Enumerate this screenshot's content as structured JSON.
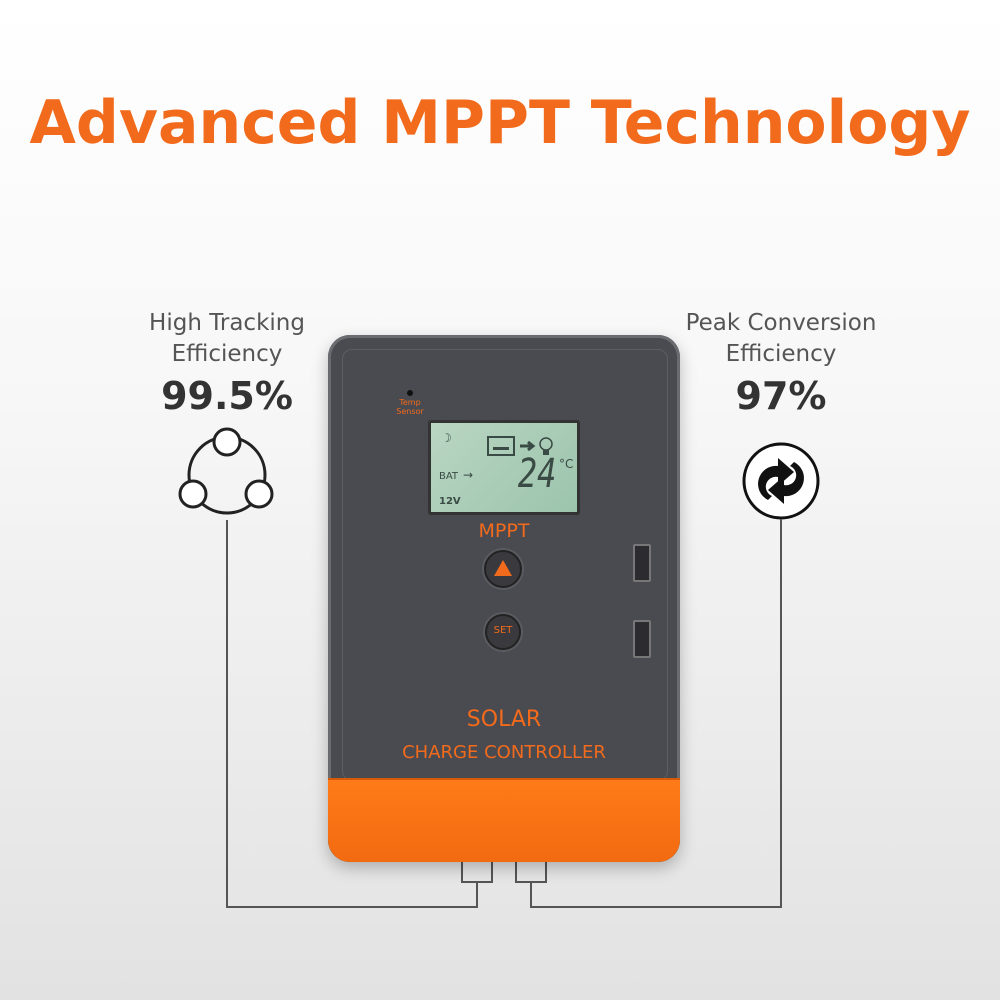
{
  "title": "Advanced MPPT Technology",
  "left": {
    "label_line1": "High Tracking",
    "label_line2": "Efficiency",
    "value": "99.5%",
    "icon": "three-node-cycle-icon"
  },
  "right": {
    "label_line1": "Peak Conversion",
    "label_line2": "Efficiency",
    "value": "97%",
    "icon": "refresh-arrows-icon"
  },
  "device": {
    "temp_sensor_line1": "Temp",
    "temp_sensor_line2": "Sensor",
    "lcd": {
      "bat": "BAT",
      "temperature": "24",
      "unit": "°C",
      "voltage": "12V"
    },
    "mppt": "MPPT",
    "set_label": "SET",
    "solar": "SOLAR",
    "charge_controller": "CHARGE CONTROLLER"
  },
  "colors": {
    "accent": "#f26a1b",
    "body": "#4a4b51",
    "lcd": "#a9c9b4"
  }
}
